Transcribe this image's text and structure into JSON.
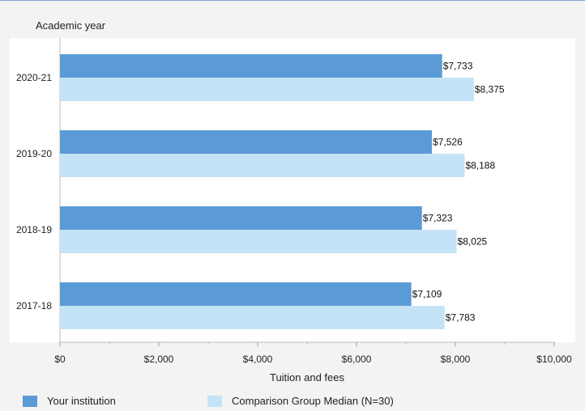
{
  "colors": {
    "background": "#f3f3f3",
    "plot_background": "#ffffff",
    "series1": "#5b9bd5",
    "series2": "#c5e3f7",
    "frame_top": "#7fa7cf"
  },
  "chart_data": {
    "type": "bar",
    "orientation": "horizontal",
    "title": "",
    "ylabel": "Academic year",
    "xlabel": "Tuition and fees",
    "categories": [
      "2020-21",
      "2019-20",
      "2018-19",
      "2017-18"
    ],
    "series": [
      {
        "name": "Your institution",
        "values": [
          7733,
          7526,
          7323,
          7109
        ],
        "labels": [
          "$7,733",
          "$7,526",
          "$7,323",
          "$7,109"
        ],
        "color": "#5b9bd5"
      },
      {
        "name": "Comparison Group Median (N=30)",
        "values": [
          8375,
          8188,
          8025,
          7783
        ],
        "labels": [
          "$8,375",
          "$8,188",
          "$8,025",
          "$7,783"
        ],
        "color": "#c5e3f7"
      }
    ],
    "xlim": [
      0,
      10000
    ],
    "xticks": [
      0,
      2000,
      4000,
      6000,
      8000,
      10000
    ],
    "xtick_labels": [
      "$0",
      "$2,000",
      "$4,000",
      "$6,000",
      "$8,000",
      "$10,000"
    ],
    "grid": false,
    "legend": "bottom"
  }
}
